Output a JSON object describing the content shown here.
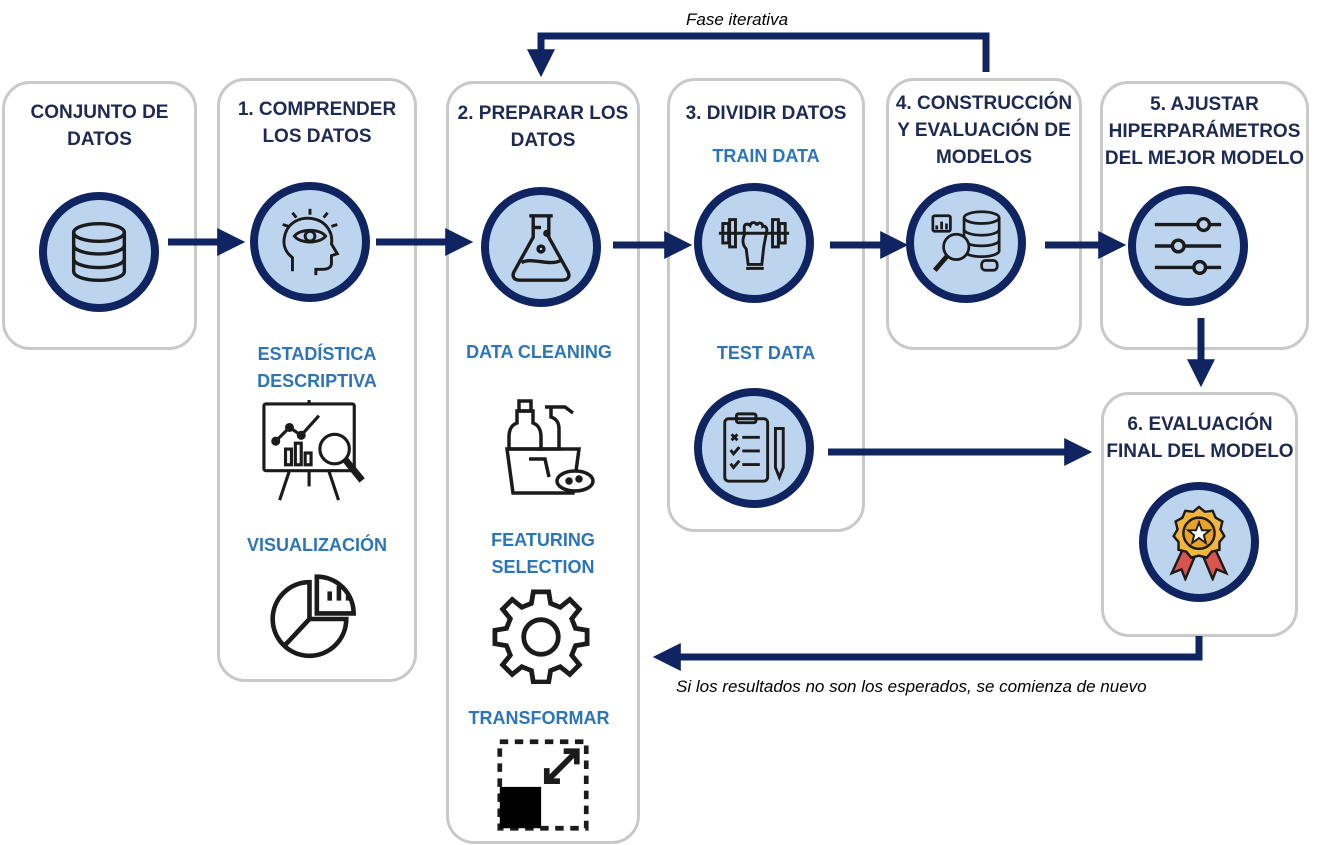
{
  "top_note": "Fase iterativa",
  "bottom_note": "Si los resultados no son los esperados, se comienza de nuevo",
  "colors": {
    "navy": "#0f2460",
    "circle_fill": "#bdd4ee",
    "label_blue": "#2e75b6",
    "box_border": "#c9c9c9"
  },
  "steps": {
    "s0": {
      "title": "CONJUNTO DE DATOS",
      "icon": "database-icon"
    },
    "s1": {
      "title": "1. COMPRENDER LOS DATOS",
      "icon": "head-eye-icon",
      "sub1": "ESTADÍSTICA DESCRIPTIVA",
      "sub2": "VISUALIZACIÓN"
    },
    "s2": {
      "title": "2. PREPARAR LOS DATOS",
      "icon": "flask-icon",
      "sub1": "DATA CLEANING",
      "sub2": "FEATURING SELECTION",
      "sub3": "TRANSFORMAR"
    },
    "s3": {
      "title": "3. DIVIDIR DATOS",
      "icon": "dumbbell-icon",
      "sub1": "TRAIN DATA",
      "sub2": "TEST DATA"
    },
    "s4": {
      "title": "4. CONSTRUCCIÓN Y EVALUACIÓN DE MODELOS",
      "icon": "data-search-icon"
    },
    "s5": {
      "title": "5. AJUSTAR HIPERPARÁMETROS DEL MEJOR MODELO",
      "icon": "sliders-icon"
    },
    "s6": {
      "title": "6. EVALUACIÓN FINAL DEL MODELO",
      "icon": "medal-icon"
    }
  }
}
